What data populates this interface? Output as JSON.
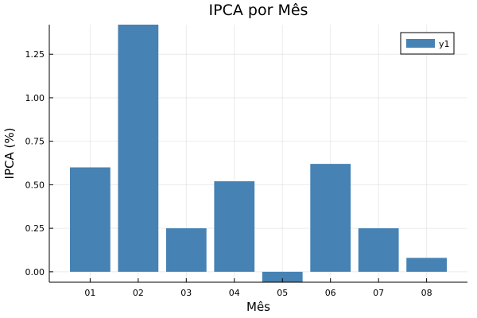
{
  "chart_data": {
    "type": "bar",
    "title": "IPCA por Mês",
    "xlabel": "Mês",
    "ylabel": "IPCA (%)",
    "categories": [
      "01",
      "02",
      "03",
      "04",
      "05",
      "06",
      "07",
      "08"
    ],
    "series": [
      {
        "name": "y1",
        "values": [
          0.6,
          1.42,
          0.25,
          0.52,
          -0.06,
          0.62,
          0.25,
          0.08
        ]
      }
    ],
    "ylim": [
      -0.06,
      1.42
    ],
    "yticks": [
      0.0,
      0.25,
      0.5,
      0.75,
      1.0,
      1.25
    ],
    "ytick_labels": [
      "0.00",
      "0.25",
      "0.50",
      "0.75",
      "1.00",
      "1.25"
    ],
    "grid": true,
    "legend_position": "top-right",
    "colors": {
      "bar": "#4682b4"
    }
  }
}
